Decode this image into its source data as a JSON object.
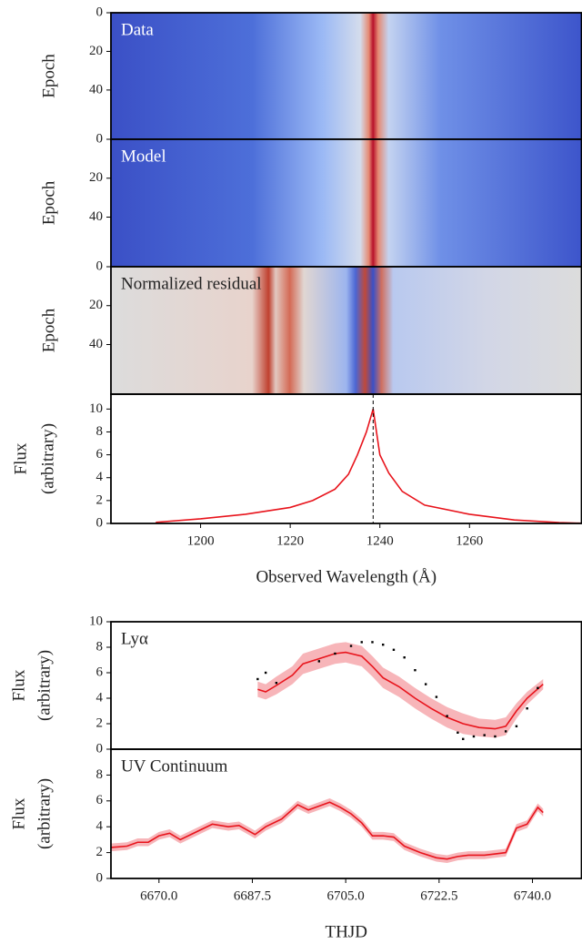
{
  "chart_data": [
    {
      "type": "heatmap",
      "label": "Data",
      "ylabel": [
        "Epoch"
      ],
      "ylim": [
        65.5,
        0
      ],
      "yticks": [
        0,
        20,
        40
      ]
    },
    {
      "type": "heatmap",
      "label": "Model",
      "ylabel": [
        "Epoch"
      ],
      "ylim": [
        65.5,
        0
      ],
      "yticks": [
        0,
        20,
        40
      ]
    },
    {
      "type": "heatmap",
      "label": "Normalized residual",
      "ylabel": [
        "Epoch"
      ],
      "ylim": [
        65.5,
        0
      ],
      "yticks": [
        0,
        20,
        40
      ]
    },
    {
      "type": "line",
      "ylabel": [
        "Flux",
        "(arbitrary)"
      ],
      "xlabel": "Observed Wavelength (Å)",
      "color": "#e8141c",
      "xlim": [
        1180,
        1285
      ],
      "xticks": [
        1200,
        1220,
        1240,
        1260
      ],
      "ylim": [
        0,
        11.3
      ],
      "yticks": [
        0,
        2,
        4,
        6,
        8,
        10
      ],
      "vline": 1238.5,
      "x": [
        1190,
        1200,
        1210,
        1220,
        1225,
        1230,
        1233,
        1235,
        1237,
        1238.5,
        1240,
        1242,
        1245,
        1250,
        1260,
        1270,
        1280,
        1285
      ],
      "values": [
        0.1,
        0.4,
        0.8,
        1.4,
        2.0,
        3.0,
        4.3,
        6.0,
        8.0,
        10.0,
        6.0,
        4.4,
        2.8,
        1.6,
        0.8,
        0.3,
        0.08,
        0.02
      ]
    },
    {
      "type": "line",
      "label": "Lyα",
      "ylabel": [
        "Flux",
        "(arbitrary)"
      ],
      "color": "#e8141c",
      "band_color": "#f5a3a8",
      "xlim": [
        6661,
        6749.2
      ],
      "ylim": [
        0,
        10
      ],
      "yticks": [
        0,
        2,
        4,
        6,
        8,
        10
      ],
      "x": [
        6688.5,
        6690,
        6692,
        6695,
        6697,
        6700,
        6703,
        6705,
        6708,
        6710,
        6712,
        6715,
        6718,
        6721,
        6724,
        6727,
        6730,
        6733,
        6735,
        6737,
        6739,
        6742
      ],
      "values": [
        4.7,
        4.5,
        5.0,
        5.8,
        6.7,
        7.1,
        7.5,
        7.6,
        7.3,
        6.5,
        5.6,
        4.9,
        4.0,
        3.2,
        2.5,
        2.0,
        1.7,
        1.6,
        1.8,
        3.0,
        4.0,
        5.1
      ],
      "errors": [
        0.6,
        0.6,
        0.7,
        0.7,
        0.8,
        0.8,
        0.8,
        0.8,
        0.8,
        0.8,
        0.8,
        0.8,
        0.8,
        0.8,
        0.8,
        0.8,
        0.7,
        0.7,
        0.7,
        0.6,
        0.5,
        0.4
      ],
      "points_x": [
        6688.5,
        6690,
        6692,
        6700,
        6703,
        6706,
        6708,
        6710,
        6712,
        6714,
        6716,
        6718,
        6720,
        6722,
        6724,
        6726,
        6727,
        6729,
        6731,
        6733,
        6735,
        6737,
        6739,
        6741
      ],
      "points_y": [
        5.5,
        6.0,
        5.2,
        6.9,
        7.5,
        8.1,
        8.4,
        8.4,
        8.2,
        7.8,
        7.2,
        6.2,
        5.1,
        4.1,
        2.6,
        1.3,
        0.8,
        1.0,
        1.1,
        1.0,
        1.4,
        1.8,
        3.2,
        4.8
      ]
    },
    {
      "type": "line",
      "label": "UV Continuum",
      "ylabel": [
        "Flux",
        "(arbitrary)"
      ],
      "xlabel": "THJD",
      "color": "#e8141c",
      "band_color": "#f5a3a8",
      "xlim": [
        6661,
        6749.2
      ],
      "ylim": [
        0,
        10
      ],
      "yticks": [
        0,
        2,
        4,
        6,
        8
      ],
      "xticks": [
        {
          "value": 6670,
          "label": "6670.0"
        },
        {
          "value": 6687.5,
          "label": "6687.5"
        },
        {
          "value": 6705,
          "label": "6705.0"
        },
        {
          "value": 6722.5,
          "label": "6722.5"
        },
        {
          "value": 6740,
          "label": "6740.0"
        }
      ],
      "x": [
        6661,
        6664,
        6666,
        6668,
        6670,
        6672,
        6674,
        6677,
        6680,
        6683,
        6685,
        6688,
        6690,
        6693,
        6696,
        6698,
        6700,
        6702,
        6704,
        6706,
        6708,
        6710,
        6712,
        6714,
        6716,
        6719,
        6722,
        6724,
        6726,
        6728,
        6731,
        6733,
        6735,
        6737,
        6739,
        6741,
        6742
      ],
      "values": [
        2.4,
        2.5,
        2.8,
        2.8,
        3.3,
        3.5,
        3.0,
        3.6,
        4.2,
        4.0,
        4.1,
        3.4,
        4.0,
        4.6,
        5.7,
        5.3,
        5.6,
        5.9,
        5.5,
        5.0,
        4.3,
        3.3,
        3.3,
        3.2,
        2.5,
        2.0,
        1.6,
        1.5,
        1.7,
        1.8,
        1.8,
        1.9,
        2.0,
        3.9,
        4.2,
        5.5,
        5.1
      ],
      "errors": [
        0.3,
        0.3,
        0.3,
        0.3,
        0.3,
        0.3,
        0.3,
        0.3,
        0.3,
        0.3,
        0.3,
        0.3,
        0.3,
        0.3,
        0.3,
        0.3,
        0.3,
        0.3,
        0.3,
        0.3,
        0.3,
        0.3,
        0.3,
        0.3,
        0.3,
        0.3,
        0.3,
        0.3,
        0.3,
        0.3,
        0.3,
        0.3,
        0.3,
        0.3,
        0.3,
        0.3,
        0.3
      ]
    }
  ]
}
